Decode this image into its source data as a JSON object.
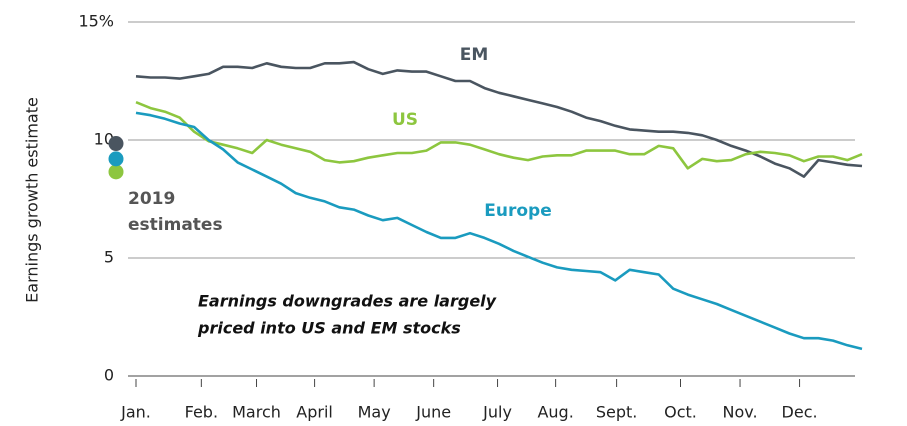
{
  "chart_data": {
    "type": "line",
    "y_label": "Earnings growth estimate",
    "annotation": [
      "Earnings downgrades are largely",
      "priced into US and EM stocks"
    ],
    "estimates_label": [
      "2019",
      "estimates"
    ],
    "x": [
      0,
      1,
      2,
      3,
      4,
      5,
      6,
      7,
      8,
      9,
      10,
      11,
      12,
      13,
      14,
      15,
      16,
      17,
      18,
      19,
      20,
      21,
      22,
      23,
      24,
      25,
      26,
      27,
      28,
      29,
      30,
      31,
      32,
      33,
      34,
      35,
      36,
      37,
      38,
      39,
      40,
      41,
      42,
      43,
      44,
      45,
      46,
      47,
      48,
      49,
      50
    ],
    "xlim": [
      0,
      50
    ],
    "xticks": [
      {
        "value": 0,
        "label": "Jan."
      },
      {
        "value": 4.5,
        "label": "Feb."
      },
      {
        "value": 8.3,
        "label": "March"
      },
      {
        "value": 12.3,
        "label": "April"
      },
      {
        "value": 16.4,
        "label": "May"
      },
      {
        "value": 20.5,
        "label": "June"
      },
      {
        "value": 24.9,
        "label": "July"
      },
      {
        "value": 28.9,
        "label": "Aug."
      },
      {
        "value": 33.1,
        "label": "Sept."
      },
      {
        "value": 37.5,
        "label": "Oct."
      },
      {
        "value": 41.6,
        "label": "Nov."
      },
      {
        "value": 45.7,
        "label": "Dec."
      }
    ],
    "ylim": [
      0,
      15
    ],
    "yticks": [
      0,
      5,
      10,
      {
        "value": 15,
        "label": "15%"
      }
    ],
    "grid": true,
    "series": [
      {
        "name": "EM",
        "color": "#4a5560",
        "estimate": 9.85,
        "values": [
          12.7,
          12.65,
          12.65,
          12.6,
          12.7,
          12.8,
          13.1,
          13.1,
          13.05,
          13.25,
          13.1,
          13.05,
          13.05,
          13.25,
          13.25,
          13.3,
          13.0,
          12.8,
          12.95,
          12.9,
          12.9,
          12.7,
          12.5,
          12.5,
          12.2,
          12.0,
          11.85,
          11.7,
          11.55,
          11.4,
          11.2,
          10.95,
          10.8,
          10.6,
          10.45,
          10.4,
          10.35,
          10.35,
          10.3,
          10.2,
          10.0,
          9.75,
          9.55,
          9.3,
          9.0,
          8.8,
          8.45,
          9.15,
          9.05,
          8.95,
          8.9
        ]
      },
      {
        "name": "US",
        "color": "#8dc63f",
        "estimate": 8.65,
        "values": [
          11.6,
          11.35,
          11.2,
          10.95,
          10.35,
          9.95,
          9.8,
          9.65,
          9.45,
          10.0,
          9.8,
          9.65,
          9.5,
          9.15,
          9.05,
          9.1,
          9.25,
          9.35,
          9.45,
          9.45,
          9.55,
          9.9,
          9.9,
          9.8,
          9.6,
          9.4,
          9.25,
          9.15,
          9.3,
          9.35,
          9.35,
          9.55,
          9.55,
          9.55,
          9.4,
          9.4,
          9.75,
          9.65,
          8.8,
          9.2,
          9.1,
          9.15,
          9.4,
          9.5,
          9.45,
          9.35,
          9.1,
          9.3,
          9.3,
          9.15,
          9.4
        ]
      },
      {
        "name": "Europe",
        "color": "#1a9bbf",
        "estimate": 9.2,
        "values": [
          11.15,
          11.05,
          10.9,
          10.7,
          10.55,
          10.0,
          9.6,
          9.05,
          8.75,
          8.45,
          8.15,
          7.75,
          7.55,
          7.4,
          7.15,
          7.05,
          6.8,
          6.6,
          6.7,
          6.4,
          6.1,
          5.85,
          5.85,
          6.05,
          5.85,
          5.6,
          5.3,
          5.05,
          4.8,
          4.6,
          4.5,
          4.45,
          4.4,
          4.05,
          4.5,
          4.4,
          4.3,
          3.7,
          3.45,
          3.25,
          3.05,
          2.8,
          2.55,
          2.3,
          2.05,
          1.8,
          1.6,
          1.6,
          1.5,
          1.3,
          1.15
        ]
      }
    ]
  }
}
